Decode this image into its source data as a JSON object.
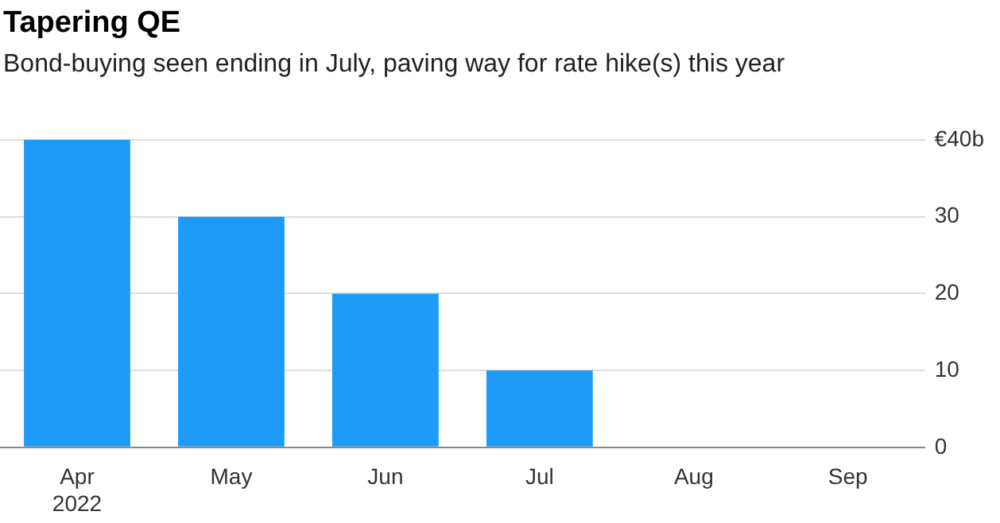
{
  "chart_data": {
    "type": "bar",
    "title": "Tapering QE",
    "subtitle": "Bond-buying seen ending in July, paving way for rate hike(s) this year",
    "categories": [
      "Apr\n2022",
      "May",
      "Jun",
      "Jul",
      "Aug",
      "Sep"
    ],
    "values": [
      40,
      30,
      20,
      10,
      0,
      0
    ],
    "color": "#1d9bf6",
    "ylim": [
      0,
      40
    ],
    "yticks": [
      0,
      10,
      20,
      30,
      {
        "value": 40,
        "label": "€40b"
      }
    ],
    "grid": "y"
  }
}
